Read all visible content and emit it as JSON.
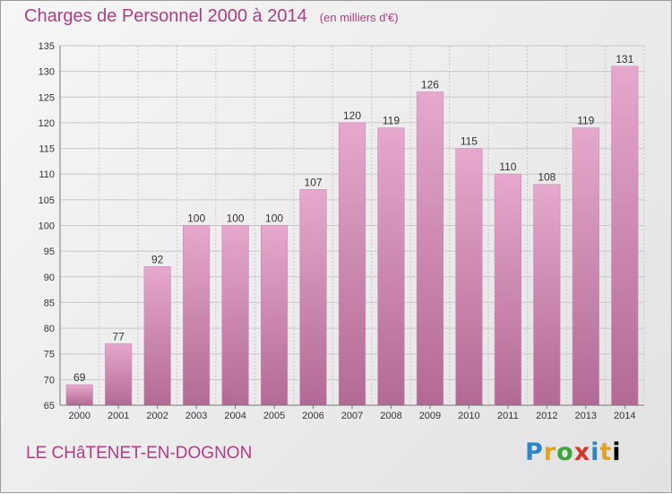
{
  "header": {
    "title": "Charges de Personnel 2000 à 2014",
    "subtitle": "(en milliers d'€)"
  },
  "footer": {
    "commune": "LE CHâTENET-EN-DOGNON",
    "logo": [
      "P",
      "r",
      "o",
      "x",
      "i",
      "t",
      "i"
    ]
  },
  "colors": {
    "title": "#b33d82",
    "bar_top": "#e6a8cc",
    "bar_bottom": "#b26a94",
    "grid": "#c8c8c8"
  },
  "chart_data": {
    "type": "bar",
    "title": "Charges de Personnel 2000 à 2014",
    "subtitle": "(en milliers d'€)",
    "categories": [
      "2000",
      "2001",
      "2002",
      "2003",
      "2004",
      "2005",
      "2006",
      "2007",
      "2008",
      "2009",
      "2010",
      "2011",
      "2012",
      "2013",
      "2014"
    ],
    "values": [
      69,
      77,
      92,
      100,
      100,
      100,
      107,
      120,
      119,
      126,
      115,
      110,
      108,
      119,
      131
    ],
    "data_labels": [
      "69",
      "77",
      "92",
      "100",
      "100",
      "100",
      "107",
      "120",
      "119",
      "126",
      "115",
      "110",
      "108",
      "119",
      "131"
    ],
    "ylim": [
      65,
      135
    ],
    "yticks": [
      65,
      70,
      75,
      80,
      85,
      90,
      95,
      100,
      105,
      110,
      115,
      120,
      125,
      130,
      135
    ],
    "grid": true,
    "xlabel": "",
    "ylabel": ""
  }
}
